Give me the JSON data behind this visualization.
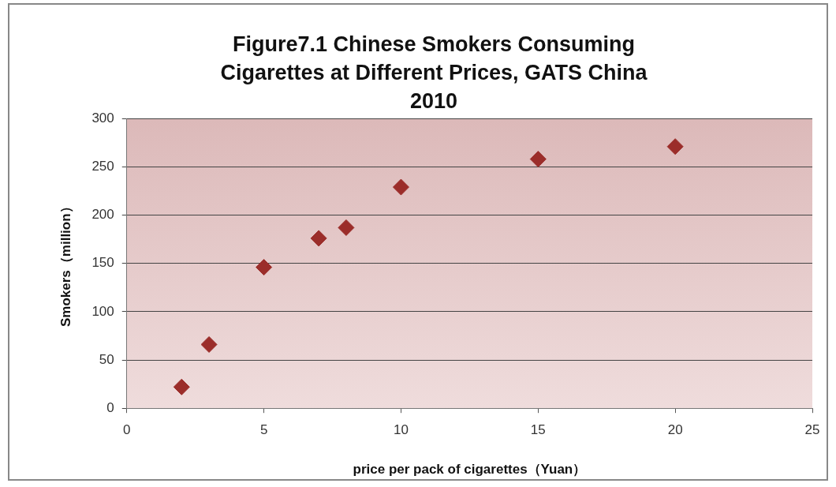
{
  "chart_data": {
    "type": "scatter",
    "title": "Figure7.1 Chinese Smokers Consuming Cigarettes at Different Prices, GATS China 2010",
    "xlabel": "price per pack of cigarettes（Yuan）",
    "ylabel": "Smokers（million）",
    "x": [
      2,
      3,
      5,
      7,
      8,
      10,
      15,
      20
    ],
    "series": [
      {
        "color": "#9b2d2a",
        "values": [
          22,
          66,
          146,
          176,
          187,
          229,
          258,
          271
        ]
      }
    ],
    "xlim": [
      0,
      25
    ],
    "xticks": [
      0,
      5,
      10,
      15,
      20,
      25
    ],
    "ylim": [
      0,
      300
    ],
    "yticks": [
      0,
      50,
      100,
      150,
      200,
      250,
      300
    ],
    "grid": "y",
    "legend": false,
    "marker": "diamond"
  }
}
